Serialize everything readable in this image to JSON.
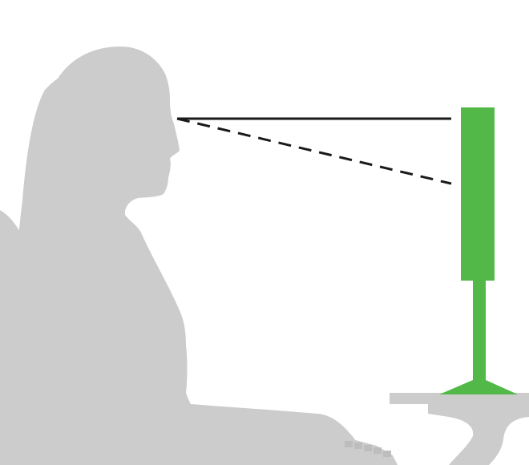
{
  "diagram": {
    "subject": "person-silhouette",
    "object": "monitor",
    "colors": {
      "silhouette": "#cccccc",
      "monitor": "#52b848",
      "desk": "#cccccc",
      "sight_line": "#1a1a1a"
    },
    "lines": [
      {
        "name": "horizontal-eye-line",
        "style": "solid"
      },
      {
        "name": "downward-gaze-line",
        "style": "dashed"
      }
    ]
  }
}
